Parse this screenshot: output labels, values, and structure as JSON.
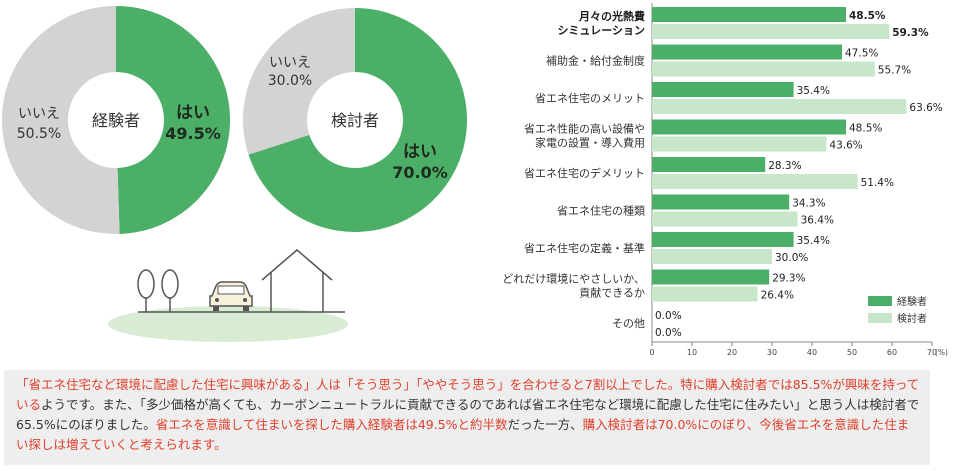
{
  "colors": {
    "experienced": "#4caf68",
    "considering": "#c8e6c9",
    "no": "#d3d3d3",
    "text": "#333333",
    "highlight": "#e0402c"
  },
  "donuts": [
    {
      "center_label": "経験者",
      "yes": {
        "label": "はい",
        "pct_text": "49.5%",
        "value": 49.5
      },
      "no": {
        "label": "いいえ",
        "pct_text": "50.5%",
        "value": 50.5
      }
    },
    {
      "center_label": "検討者",
      "yes": {
        "label": "はい",
        "pct_text": "70.0%",
        "value": 70.0
      },
      "no": {
        "label": "いいえ",
        "pct_text": "30.0%",
        "value": 30.0
      }
    }
  ],
  "chart_data": [
    {
      "type": "pie",
      "title": "経験者",
      "categories": [
        "はい",
        "いいえ"
      ],
      "values": [
        49.5,
        50.5
      ]
    },
    {
      "type": "pie",
      "title": "検討者",
      "categories": [
        "はい",
        "いいえ"
      ],
      "values": [
        70.0,
        30.0
      ]
    },
    {
      "type": "bar",
      "orientation": "horizontal",
      "categories": [
        [
          "月々の光熱費",
          "シミュレーション"
        ],
        [
          "補助金・給付金制度"
        ],
        [
          "省エネ住宅のメリット"
        ],
        [
          "省エネ性能の高い設備や",
          "家電の設置・導入費用"
        ],
        [
          "省エネ住宅のデメリット"
        ],
        [
          "省エネ住宅の種類"
        ],
        [
          "省エネ住宅の定義・基準"
        ],
        [
          "どれだけ環境にやさしいか、",
          "貢献できるか"
        ],
        [
          "その他"
        ]
      ],
      "series": [
        {
          "name": "経験者",
          "values": [
            48.5,
            47.5,
            35.4,
            48.5,
            28.3,
            34.3,
            35.4,
            29.3,
            0.0
          ],
          "labels": [
            "48.5%",
            "47.5%",
            "35.4%",
            "48.5%",
            "28.3%",
            "34.3%",
            "35.4%",
            "29.3%",
            "0.0%"
          ]
        },
        {
          "name": "検討者",
          "values": [
            59.3,
            55.7,
            63.6,
            43.6,
            51.4,
            36.4,
            30.0,
            26.4,
            0.0
          ],
          "labels": [
            "59.3%",
            "55.7%",
            "63.6%",
            "43.6%",
            "51.4%",
            "36.4%",
            "30.0%",
            "26.4%",
            "0.0%"
          ]
        }
      ],
      "xlim": [
        0,
        70
      ],
      "xticks": [
        "0",
        "10",
        "20",
        "30",
        "40",
        "50",
        "60",
        "70"
      ],
      "xunit": "(%)",
      "bold_category": 0,
      "legend_position": "bottom-right"
    }
  ],
  "caption": {
    "segments": [
      {
        "text": "「省エネ住宅など環境に配慮した住宅に興味がある」人は「そう思う」「ややそう思う」を合わせると7割以上でした。特に購入検討者では85.5%が興味を持っている",
        "hl": true
      },
      {
        "text": "ようです。また、「多少価格が高くても、カーボンニュートラルに貢献できるのであれば省エネ住宅など環境に配慮した住宅に住みたい」と思う人は検討者で65.5%にのぼりました。",
        "hl": false
      },
      {
        "text": "省エネを意識して住まいを探した購入経験者は49.5%と約半数",
        "hl": true
      },
      {
        "text": "だった一方、",
        "hl": false
      },
      {
        "text": "購入検討者は70.0%にのぼり、今後省エネを意識した住まい探しは増えていくと考えられます。",
        "hl": true
      }
    ]
  }
}
